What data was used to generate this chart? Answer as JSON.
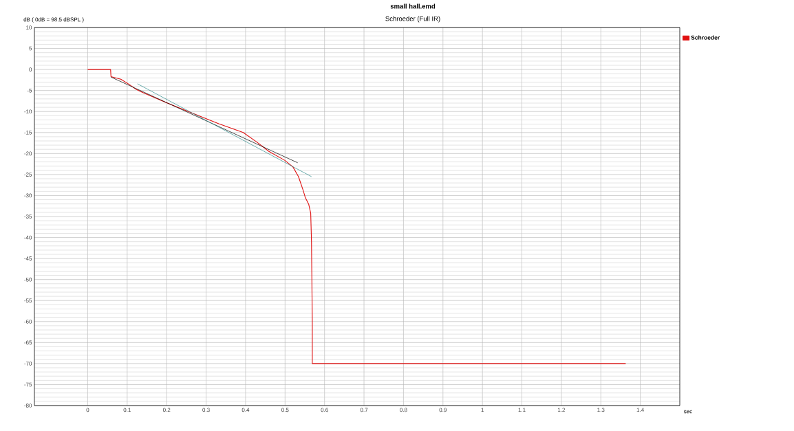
{
  "chart_data": {
    "type": "line",
    "title": "small hall.emd",
    "subtitle": "Schroeder (Full IR)",
    "xlabel": "sec",
    "ylabel": "dB ( 0dB = 98.5 dBSPL )",
    "xlim": [
      -0.135,
      1.5
    ],
    "ylim": [
      -80,
      10
    ],
    "xticks": [
      0,
      0.1,
      0.2,
      0.3,
      0.4,
      0.5,
      0.6,
      0.7,
      0.8,
      0.9,
      1,
      1.1,
      1.2,
      1.3,
      1.4
    ],
    "yticks": [
      -80,
      -75,
      -70,
      -65,
      -60,
      -55,
      -50,
      -45,
      -40,
      -35,
      -30,
      -25,
      -20,
      -15,
      -10,
      -5,
      0,
      5,
      10
    ],
    "grid": true,
    "legend": "top right",
    "series": [
      {
        "name": "Schroeder",
        "color": "#e01010",
        "x": [
          0,
          0.058,
          0.059,
          0.084,
          0.106,
          0.122,
          0.14,
          0.202,
          0.255,
          0.332,
          0.394,
          0.429,
          0.459,
          0.499,
          0.52,
          0.534,
          0.546,
          0.551,
          0.56,
          0.565,
          0.567,
          0.569,
          0.569,
          1.363
        ],
        "values": [
          0,
          0,
          -1.7,
          -2.3,
          -3.6,
          -4.7,
          -5.5,
          -8.0,
          -10.0,
          -12.9,
          -15.0,
          -17.3,
          -19.5,
          -21.6,
          -23.2,
          -25.5,
          -28.8,
          -30.4,
          -32.1,
          -34.2,
          -41.2,
          -60,
          -70,
          -70
        ]
      },
      {
        "type": "line",
        "color": "#000000",
        "x": [
          0.059,
          0.532
        ],
        "values": [
          -1.8,
          -22.2
        ]
      },
      {
        "type": "line",
        "color": "#2e8b8b",
        "x": [
          0.126,
          0.567
        ],
        "values": [
          -3.4,
          -25.5
        ]
      }
    ]
  }
}
